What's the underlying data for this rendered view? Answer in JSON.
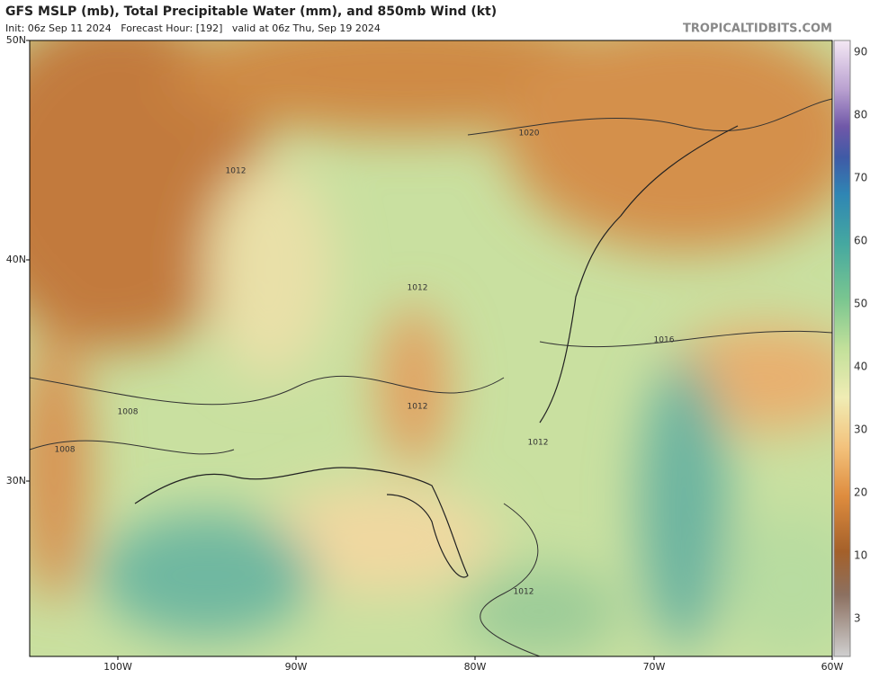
{
  "header": {
    "title": "GFS MSLP (mb), Total Precipitable Water (mm), and 850mb Wind (kt)",
    "run_info": "Init: 06z Sep 11 2024   Forecast Hour: [192]   valid at 06z Thu, Sep 19 2024",
    "source": "TROPICALTIDBITS.COM"
  },
  "map": {
    "latitude_labels": [
      "50N",
      "40N",
      "30N"
    ],
    "longitude_labels": [
      "100W",
      "90W",
      "80W",
      "70W",
      "60W"
    ],
    "isobar_labels": [
      "1020",
      "1012",
      "1012",
      "1016",
      "1008",
      "1008",
      "1012",
      "1012",
      "1012"
    ]
  },
  "colorbar": {
    "labels": [
      90,
      80,
      70,
      60,
      50,
      40,
      30,
      20,
      10,
      3
    ]
  }
}
